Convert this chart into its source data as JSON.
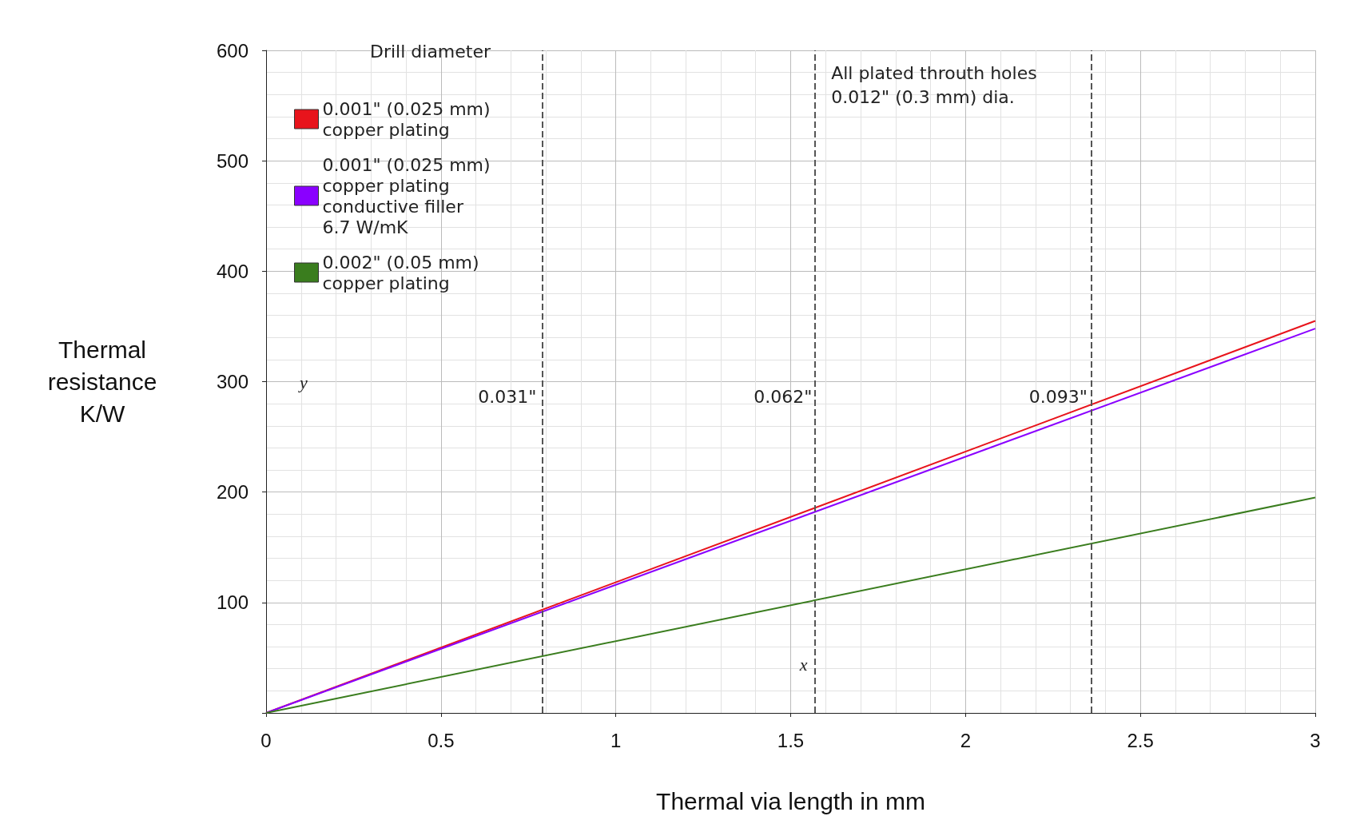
{
  "chart_data": {
    "type": "line",
    "xlabel": "Thermal via length in mm",
    "ylabel": "Thermal\nresistance\nK/W",
    "legend_title": "Drill diameter",
    "x": [
      0,
      3
    ],
    "series": [
      {
        "name": "0.001\" (0.025 mm)\ncopper plating",
        "color": "#e8141c",
        "values": [
          0,
          355
        ]
      },
      {
        "name": "0.001\" (0.025 mm)\ncopper plating\nconductive filler\n6.7 W/mK",
        "color": "#8a00ff",
        "values": [
          0,
          348
        ]
      },
      {
        "name": "0.002\" (0.05 mm)\ncopper plating",
        "color": "#3a7d1e",
        "values": [
          0,
          195
        ]
      }
    ],
    "xlim": [
      0,
      3
    ],
    "xticks": [
      0,
      0.5,
      1,
      1.5,
      2,
      2.5,
      3
    ],
    "ylim": [
      0,
      600
    ],
    "yticks": [
      {
        "value": 0,
        "label": null
      },
      100,
      200,
      300,
      400,
      500,
      600
    ],
    "ref_lines": [
      {
        "axis": "x",
        "value": 0.787,
        "line_style": "dashed",
        "color": "#555555"
      },
      {
        "axis": "x",
        "value": 1.575,
        "line_style": "dashed",
        "color": "#555555"
      },
      {
        "axis": "x",
        "value": 2.362,
        "line_style": "dashed",
        "color": "#555555"
      }
    ],
    "annotations": [
      "All plated throuth holes\n0.012\" (0.3 mm) dia.",
      "y",
      "x",
      "0.031\"",
      "0.062\"",
      "0.093\""
    ],
    "grid": true,
    "legend": "top left",
    "marker": "none",
    "line_style": "solid"
  }
}
